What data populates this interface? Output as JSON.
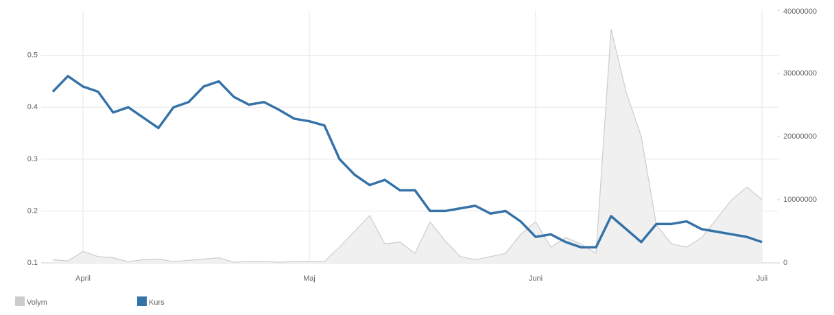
{
  "chart_data": {
    "type": "line",
    "categories": [
      null,
      null,
      "April",
      null,
      null,
      null,
      null,
      null,
      null,
      null,
      null,
      null,
      null,
      null,
      null,
      null,
      null,
      "Maj",
      null,
      null,
      null,
      null,
      null,
      null,
      null,
      null,
      null,
      null,
      null,
      null,
      null,
      null,
      "Juni",
      null,
      null,
      null,
      null,
      null,
      null,
      null,
      null,
      null,
      null,
      null,
      null,
      null,
      null,
      "Juli"
    ],
    "series": [
      {
        "name": "Volym",
        "color": "#cccccc",
        "axis": "y2",
        "values": [
          500000,
          300000,
          1800000,
          1000000,
          800000,
          200000,
          500000,
          600000,
          200000,
          400000,
          600000,
          800000,
          100000,
          200000,
          200000,
          100000,
          200000,
          200000,
          200000,
          2500000,
          5000000,
          7500000,
          3000000,
          3300000,
          1500000,
          6500000,
          3500000,
          1000000,
          500000,
          1000000,
          1500000,
          4500000,
          6500000,
          2500000,
          4000000,
          3000000,
          1500000,
          37000000,
          27000000,
          20000000,
          6000000,
          3000000,
          2500000,
          4000000,
          7000000,
          10000000,
          12000000,
          10000000
        ]
      },
      {
        "name": "Kurs",
        "color": "#3572a8",
        "values": [
          0.43,
          0.46,
          0.44,
          0.43,
          0.39,
          0.4,
          0.38,
          0.36,
          0.4,
          0.41,
          0.44,
          0.45,
          0.42,
          0.405,
          0.41,
          0.395,
          0.378,
          0.373,
          0.365,
          0.3,
          0.27,
          0.25,
          0.26,
          0.24,
          0.24,
          0.2,
          0.2,
          0.205,
          0.21,
          0.195,
          0.2,
          0.18,
          0.15,
          0.155,
          0.14,
          0.13,
          0.13,
          0.19,
          0.165,
          0.14,
          0.175,
          0.175,
          0.18,
          0.165,
          0.16,
          0.155,
          0.15,
          0.14
        ]
      }
    ],
    "ylim": [
      0.1,
      0.587
    ],
    "yticks": [
      0.1,
      0.2,
      0.3,
      0.4,
      0.5
    ],
    "y2lim": [
      0,
      40000000
    ],
    "y2ticks": [
      0,
      10000000,
      20000000,
      30000000,
      40000000
    ],
    "grid": true,
    "legend": "bottom-left"
  }
}
